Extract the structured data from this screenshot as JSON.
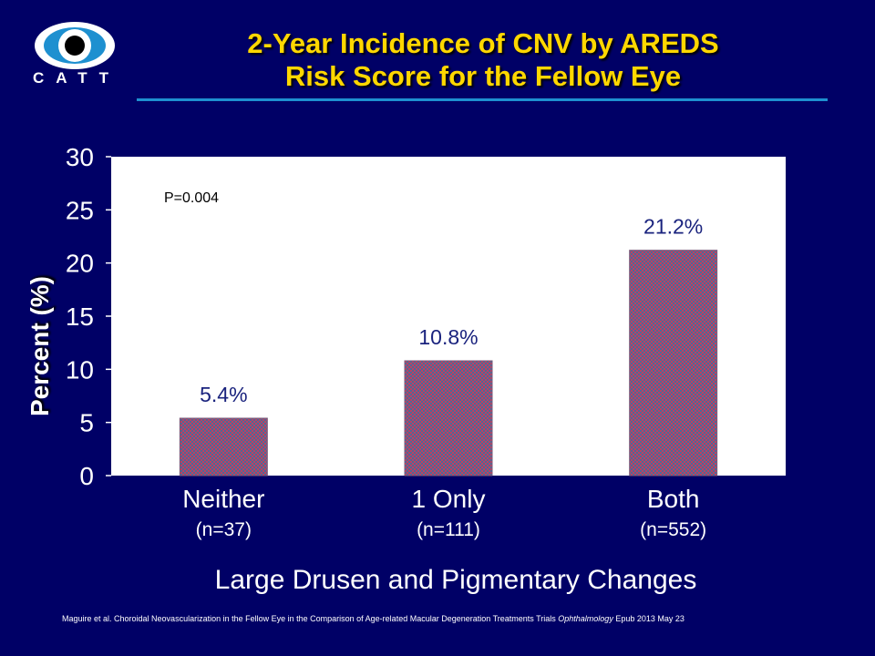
{
  "logo": {
    "text": "CATT"
  },
  "title": {
    "line1": "2-Year Incidence of CNV by AREDS",
    "line2": "Risk Score for the Fellow Eye"
  },
  "chart_data": {
    "type": "bar",
    "categories": [
      "Neither",
      "1 Only",
      "Both"
    ],
    "sample_sizes": [
      "(n=37)",
      "(n=111)",
      "(n=552)"
    ],
    "values": [
      5.4,
      10.8,
      21.2
    ],
    "data_labels": [
      "5.4%",
      "10.8%",
      "21.2%"
    ],
    "ylabel": "Percent (%)",
    "xlabel": "Large Drusen and Pigmentary Changes",
    "ylim": [
      0,
      30
    ],
    "yticks": [
      0,
      5,
      10,
      15,
      20,
      25,
      30
    ],
    "annotation": "P=0.004",
    "grid": false,
    "colors": {
      "plot_bg": "#ffffff",
      "bar_fill": "#8a5a8a",
      "data_label": "#1a237e",
      "axis_text": "#ffffff",
      "page_bg": "#000066",
      "title": "#ffd700"
    }
  },
  "citation": {
    "main": "Maguire et al. Choroidal Neovascularization in the Fellow Eye in the Comparison of Age-related Macular Degeneration Treatments Trials ",
    "journal": "Ophthalmology",
    "epub": "  Epub 2013 May 23"
  }
}
